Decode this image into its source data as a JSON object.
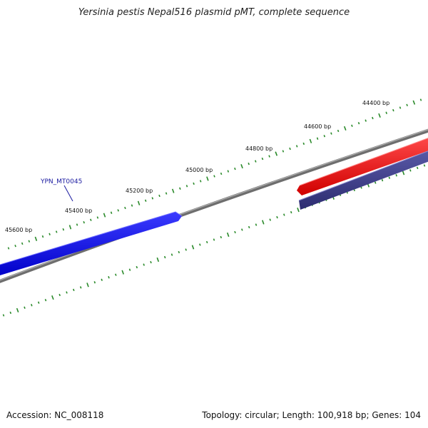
{
  "title": "Yersinia pestis Nepal516 plasmid pMT, complete sequence",
  "footer": {
    "accession": "Accession: NC_008118",
    "summary": "Topology: circular; Length: 100,918 bp; Genes: 104"
  },
  "ticks": [
    {
      "label": "44400 bp"
    },
    {
      "label": "44600 bp"
    },
    {
      "label": "44800 bp"
    },
    {
      "label": "45000 bp"
    },
    {
      "label": "45200 bp"
    },
    {
      "label": "45400 bp"
    },
    {
      "label": "45600 bp"
    }
  ],
  "genes": {
    "forward": {
      "label": "YPN_MT0045",
      "color": "#0000ff"
    },
    "reverse_red": {
      "color": "#ff0000"
    },
    "reverse_navy": {
      "color": "#3a3a8c"
    }
  },
  "colors": {
    "backbone": "#7a7a7a",
    "tick_marks": "#2a8a2a",
    "label_line": "#1a1aa0"
  }
}
